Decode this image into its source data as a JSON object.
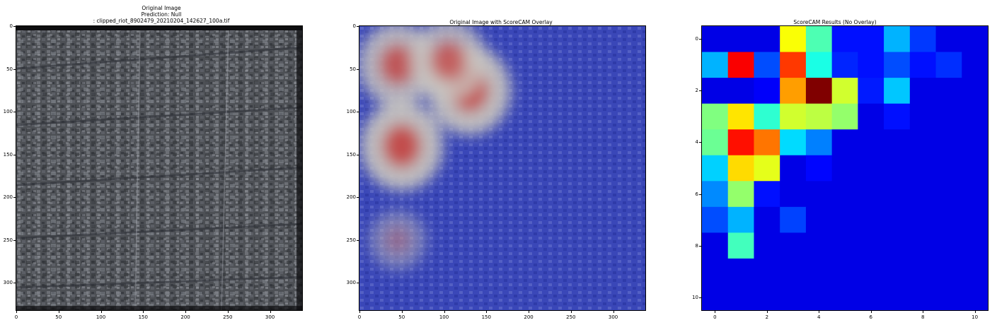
{
  "chart_data": [
    {
      "type": "image",
      "title_lines": [
        "Original Image",
        "Prediction: Null",
        ": clipped_riot_8902479_20210204_142627_100a.tif"
      ],
      "xlim": [
        0,
        338
      ],
      "ylim": [
        332,
        0
      ],
      "x_ticks": [
        0,
        50,
        100,
        150,
        200,
        250,
        300
      ],
      "y_ticks": [
        0,
        50,
        100,
        150,
        200,
        250,
        300
      ]
    },
    {
      "type": "image",
      "title": "Original Image with ScoreCAM Overlay",
      "xlim": [
        0,
        338
      ],
      "ylim": [
        332,
        0
      ],
      "x_ticks": [
        0,
        50,
        100,
        150,
        200,
        250,
        300
      ],
      "y_ticks": [
        0,
        50,
        100,
        150,
        200,
        250,
        300
      ],
      "hotspots": [
        {
          "x": 45,
          "y": 45,
          "intensity": 0.85
        },
        {
          "x": 130,
          "y": 75,
          "intensity": 0.95
        },
        {
          "x": 105,
          "y": 40,
          "intensity": 0.8
        },
        {
          "x": 50,
          "y": 140,
          "intensity": 0.95
        },
        {
          "x": 45,
          "y": 250,
          "intensity": 0.35
        }
      ]
    },
    {
      "type": "heatmap",
      "title": "ScoreCAM Results (No Overlay)",
      "colormap": "jet",
      "x_ticks": [
        0,
        2,
        4,
        6,
        8,
        10
      ],
      "y_ticks": [
        0,
        2,
        4,
        6,
        8,
        10
      ],
      "values": [
        [
          0.1,
          0.1,
          0.1,
          0.62,
          0.45,
          0.14,
          0.14,
          0.3,
          0.18,
          0.1,
          0.1
        ],
        [
          0.3,
          0.88,
          0.2,
          0.82,
          0.4,
          0.16,
          0.14,
          0.2,
          0.14,
          0.17,
          0.1
        ],
        [
          0.1,
          0.1,
          0.12,
          0.72,
          1.0,
          0.58,
          0.15,
          0.32,
          0.1,
          0.1,
          0.1
        ],
        [
          0.5,
          0.65,
          0.42,
          0.58,
          0.56,
          0.52,
          0.1,
          0.14,
          0.1,
          0.1,
          0.1
        ],
        [
          0.48,
          0.86,
          0.76,
          0.34,
          0.25,
          0.1,
          0.1,
          0.1,
          0.1,
          0.1,
          0.1
        ],
        [
          0.33,
          0.66,
          0.6,
          0.1,
          0.13,
          0.1,
          0.1,
          0.1,
          0.1,
          0.1,
          0.1
        ],
        [
          0.26,
          0.52,
          0.14,
          0.1,
          0.1,
          0.1,
          0.1,
          0.1,
          0.1,
          0.1,
          0.1
        ],
        [
          0.2,
          0.3,
          0.1,
          0.19,
          0.1,
          0.1,
          0.1,
          0.1,
          0.1,
          0.1,
          0.1
        ],
        [
          0.1,
          0.44,
          0.1,
          0.1,
          0.1,
          0.1,
          0.1,
          0.1,
          0.1,
          0.1,
          0.1
        ],
        [
          0.1,
          0.1,
          0.1,
          0.1,
          0.1,
          0.1,
          0.1,
          0.1,
          0.1,
          0.1,
          0.1
        ],
        [
          0.1,
          0.1,
          0.1,
          0.1,
          0.1,
          0.1,
          0.1,
          0.1,
          0.1,
          0.1,
          0.1
        ]
      ]
    }
  ]
}
